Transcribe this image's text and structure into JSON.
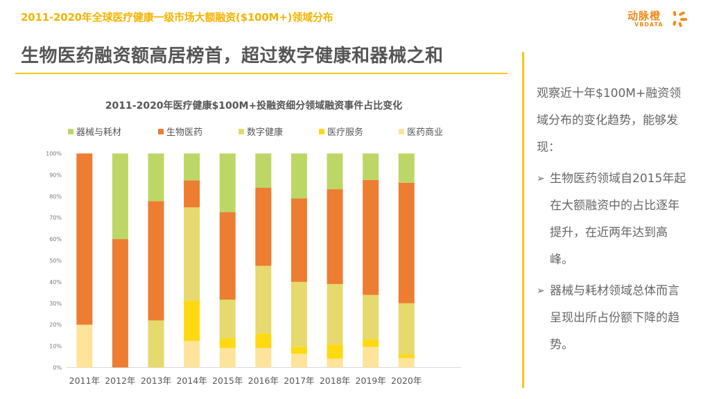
{
  "header": {
    "section_title": "2011-2020年全球医疗健康一级市场大额融资($100M+)领域分布",
    "headline": "生物医药融资额高居榜首，超过数字健康和器械之和"
  },
  "logo": {
    "name_cn": "动脉橙",
    "name_en": "VBDATA",
    "brand_color": "#f08a1c"
  },
  "sidebar": {
    "intro": "观察近十年$100M+融资领域分布的变化趋势，能够发现：",
    "bullet_icon": "arrow-bullet-icon",
    "bullets": [
      "生物医药领域自2015年起在大额融资中的占比逐年提升，在近两年达到高峰。",
      "器械与耗材领域总体而言呈现出所占份额下降的趋势。"
    ]
  },
  "accent_color": "#f5c518",
  "chart_data": {
    "type": "bar",
    "stacked": true,
    "percent": true,
    "title": "2011-2020年医疗健康$100M+投融资细分领域融资事件占比变化",
    "xlabel": "",
    "ylabel": "",
    "ylim": [
      0,
      100
    ],
    "yticks": [
      "0%",
      "10%",
      "20%",
      "30%",
      "40%",
      "50%",
      "60%",
      "70%",
      "80%",
      "90%",
      "100%"
    ],
    "grid": false,
    "legend_position": "top",
    "categories": [
      "2011年",
      "2012年",
      "2013年",
      "2014年",
      "2015年",
      "2016年",
      "2017年",
      "2018年",
      "2019年",
      "2020年"
    ],
    "legend_order": [
      "器械与耗材",
      "生物医药",
      "数字健康",
      "医疗服务",
      "医药商业"
    ],
    "series": [
      {
        "name": "医药商业",
        "color": "#fde49a",
        "values": [
          20,
          0,
          0,
          12.4,
          9.1,
          9.1,
          6.4,
          4.1,
          9.6,
          4.4
        ]
      },
      {
        "name": "医疗服务",
        "color": "#ffd912",
        "values": [
          0,
          0,
          0,
          18.8,
          4.5,
          6.8,
          3.2,
          6.7,
          3.5,
          1.6
        ]
      },
      {
        "name": "数字健康",
        "color": "#e6d96e",
        "values": [
          0,
          0,
          22,
          43.6,
          18.1,
          31.6,
          30.4,
          28.2,
          20.8,
          24
        ]
      },
      {
        "name": "生物医药",
        "color": "#ed7d31",
        "values": [
          80,
          60,
          55.7,
          12.6,
          40.9,
          36.5,
          39,
          44.3,
          53.7,
          56.3
        ]
      },
      {
        "name": "器械与耗材",
        "color": "#bdd766",
        "values": [
          0,
          40,
          22.3,
          12.6,
          27.4,
          16,
          21,
          16.7,
          12.4,
          13.7
        ]
      }
    ]
  }
}
